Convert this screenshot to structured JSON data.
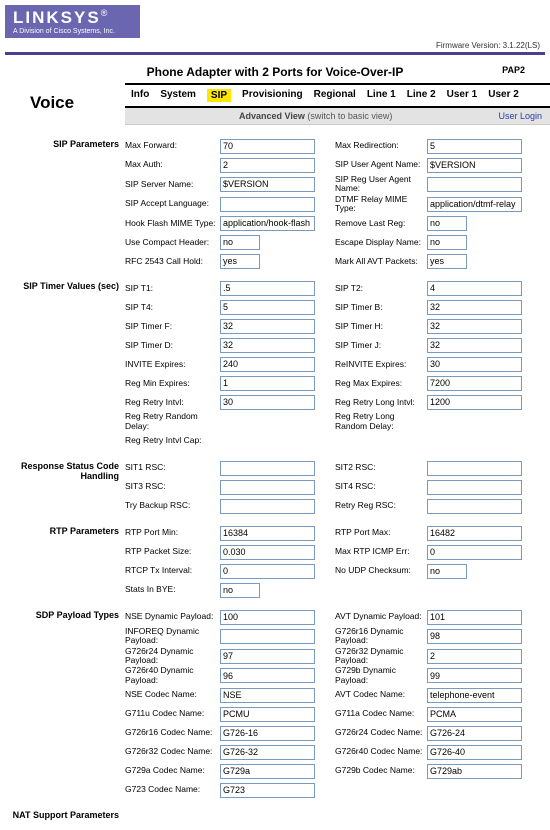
{
  "brand": {
    "name": "LINKSYS",
    "sub": "A Division of Cisco Systems, Inc.",
    "reg": "®"
  },
  "firmware": "Firmware Version: 3.1.22(LS)",
  "page_title": "Phone Adapter with 2 Ports for Voice-Over-IP",
  "model": "PAP2",
  "voice": "Voice",
  "tabs": [
    "Info",
    "System",
    "SIP",
    "Provisioning",
    "Regional",
    "Line 1",
    "Line 2",
    "User 1",
    "User 2"
  ],
  "mode_label": "Advanced View",
  "mode_switch": "(switch to basic view)",
  "user_login": "User Login",
  "sections": {
    "sip_parameters": "SIP Parameters",
    "sip_timer": "SIP Timer Values (sec)",
    "response_status": "Response Status Code Handling",
    "rtp_parameters": "RTP Parameters",
    "sdp_payload": "SDP Payload Types",
    "nat_support": "NAT Support Parameters"
  },
  "sip": {
    "max_forward_l": "Max Forward:",
    "max_forward": "70",
    "max_redirection_l": "Max Redirection:",
    "max_redirection": "5",
    "max_auth_l": "Max Auth:",
    "max_auth": "2",
    "sip_user_agent_l": "SIP User Agent Name:",
    "sip_user_agent": "$VERSION",
    "sip_server_name_l": "SIP Server Name:",
    "sip_server_name": "$VERSION",
    "sip_reg_ua_l": "SIP Reg User Agent Name:",
    "sip_reg_ua": "",
    "sip_accept_lang_l": "SIP Accept Language:",
    "sip_accept_lang": "",
    "dtmf_relay_l": "DTMF Relay MIME Type:",
    "dtmf_relay": "application/dtmf-relay",
    "hook_flash_l": "Hook Flash MIME Type:",
    "hook_flash": "application/hook-flash",
    "remove_last_reg_l": "Remove Last Reg:",
    "remove_last_reg": "no",
    "use_compact_l": "Use Compact Header:",
    "use_compact": "no",
    "escape_display_l": "Escape Display Name:",
    "escape_display": "no",
    "rfc2543_l": "RFC 2543 Call Hold:",
    "rfc2543": "yes",
    "mark_avt_l": "Mark All AVT Packets:",
    "mark_avt": "yes"
  },
  "timer": {
    "t1_l": "SIP T1:",
    "t1": ".5",
    "t2_l": "SIP T2:",
    "t2": "4",
    "t4_l": "SIP T4:",
    "t4": "5",
    "tb_l": "SIP Timer B:",
    "tb": "32",
    "tf_l": "SIP Timer F:",
    "tf": "32",
    "th_l": "SIP Timer H:",
    "th": "32",
    "td_l": "SIP Timer D:",
    "td": "32",
    "tj_l": "SIP Timer J:",
    "tj": "32",
    "inv_l": "INVITE Expires:",
    "inv": "240",
    "reinv_l": "ReINVITE Expires:",
    "reinv": "30",
    "regmin_l": "Reg Min Expires:",
    "regmin": "1",
    "regmax_l": "Reg Max Expires:",
    "regmax": "7200",
    "retry_l": "Reg Retry Intvl:",
    "retry": "30",
    "retrylong_l": "Reg Retry Long Intvl:",
    "retrylong": "1200",
    "retryrand_l": "Reg Retry Random Delay:",
    "retryrandlong_l": "Reg Retry Long Random Delay:",
    "retrycap_l": "Reg Retry Intvl Cap:"
  },
  "resp": {
    "sit1_l": "SIT1 RSC:",
    "sit2_l": "SIT2 RSC:",
    "sit3_l": "SIT3 RSC:",
    "sit4_l": "SIT4 RSC:",
    "tryb_l": "Try Backup RSC:",
    "retryreg_l": "Retry Reg RSC:"
  },
  "rtp": {
    "portmin_l": "RTP Port Min:",
    "portmin": "16384",
    "portmax_l": "RTP Port Max:",
    "portmax": "16482",
    "pktsize_l": "RTP Packet Size:",
    "pktsize": "0.030",
    "maxicmp_l": "Max RTP ICMP Err:",
    "maxicmp": "0",
    "rtcptx_l": "RTCP Tx Interval:",
    "rtcptx": "0",
    "noudp_l": "No UDP Checksum:",
    "noudp": "no",
    "statsbye_l": "Stats In BYE:",
    "statsbye": "no"
  },
  "sdp": {
    "nse_l": "NSE Dynamic Payload:",
    "nse": "100",
    "avt_l": "AVT Dynamic Payload:",
    "avt": "101",
    "inforeq_l": "INFOREQ Dynamic Payload:",
    "inforeq": "",
    "g726r16_l": "G726r16 Dynamic Payload:",
    "g726r16": "98",
    "g726r24_l": "G726r24 Dynamic Payload:",
    "g726r24": "97",
    "g726r32_l": "G726r32 Dynamic Payload:",
    "g726r32": "2",
    "g726r40_l": "G726r40 Dynamic Payload:",
    "g726r40": "96",
    "g729b_l": "G729b Dynamic Payload:",
    "g729b": "99",
    "nsecodec_l": "NSE Codec Name:",
    "nsecodec": "NSE",
    "avtcodec_l": "AVT Codec Name:",
    "avtcodec": "telephone-event",
    "g711u_l": "G711u Codec Name:",
    "g711u": "PCMU",
    "g711a_l": "G711a Codec Name:",
    "g711a": "PCMA",
    "g726r16c_l": "G726r16 Codec Name:",
    "g726r16c": "G726-16",
    "g726r24c_l": "G726r24 Codec Name:",
    "g726r24c": "G726-24",
    "g726r32c_l": "G726r32 Codec Name:",
    "g726r32c": "G726-32",
    "g726r40c_l": "G726r40 Codec Name:",
    "g726r40c": "G726-40",
    "g729a_l": "G729a Codec Name:",
    "g729a": "G729a",
    "g729bc_l": "G729b Codec Name:",
    "g729bc": "G729ab",
    "g723_l": "G723 Codec Name:",
    "g723": "G723"
  }
}
